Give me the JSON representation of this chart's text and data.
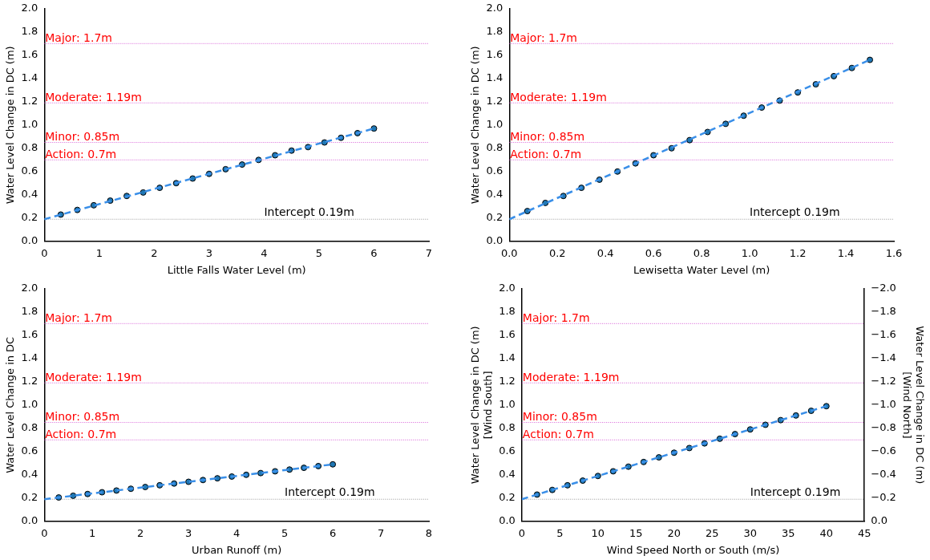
{
  "chart_data": [
    {
      "type": "scatter",
      "xlabel": "Little Falls Water Level (m)",
      "ylabel": "Water Level Change in DC (m)",
      "xlim": [
        0,
        7
      ],
      "xticks": [
        0,
        1,
        2,
        3,
        4,
        5,
        6,
        7
      ],
      "ylim": [
        0,
        2
      ],
      "yticks": [
        {
          "value": 0,
          "label": "0.0"
        },
        {
          "value": 0.2,
          "label": "0.2"
        },
        {
          "value": 0.4,
          "label": "0.4"
        },
        {
          "value": 0.6,
          "label": "0.6"
        },
        {
          "value": 0.8,
          "label": "0.8"
        },
        {
          "value": 1,
          "label": "1.0"
        },
        {
          "value": 1.2,
          "label": "1.2"
        },
        {
          "value": 1.4,
          "label": "1.4"
        },
        {
          "value": 1.6,
          "label": "1.6"
        },
        {
          "value": 1.8,
          "label": "1.8"
        },
        {
          "value": 2,
          "label": "2.0"
        }
      ],
      "legend": false,
      "marker": "circle",
      "series": [
        {
          "type": "line",
          "color": "#3a8fe8",
          "line_style": "dashed",
          "marker": "none",
          "x": [
            0,
            6
          ],
          "values": [
            0.19,
            0.97
          ]
        },
        {
          "type": "scatter",
          "color": "#1f77b4",
          "x": [
            0.3,
            0.6,
            0.9,
            1.2,
            1.5,
            1.8,
            2.1,
            2.4,
            2.7,
            3.0,
            3.3,
            3.6,
            3.9,
            4.2,
            4.5,
            4.8,
            5.1,
            5.4,
            5.7,
            6.0
          ],
          "values": [
            0.23,
            0.27,
            0.31,
            0.35,
            0.39,
            0.42,
            0.46,
            0.5,
            0.54,
            0.58,
            0.62,
            0.66,
            0.7,
            0.74,
            0.78,
            0.81,
            0.85,
            0.89,
            0.93,
            0.97
          ]
        }
      ],
      "ref_lines": [
        {
          "axis": "y",
          "value": 1.7,
          "label": "Major: 1.7m",
          "color": "#cc33cc"
        },
        {
          "axis": "y",
          "value": 1.19,
          "label": "Moderate: 1.19m",
          "color": "#cc33cc"
        },
        {
          "axis": "y",
          "value": 0.85,
          "label": "Minor: 0.85m",
          "color": "#cc33cc"
        },
        {
          "axis": "y",
          "value": 0.7,
          "label": "Action: 0.7m",
          "color": "#cc33cc"
        },
        {
          "axis": "y",
          "value": 0.19,
          "color": "#808080"
        }
      ],
      "annotations": [
        {
          "text": "Intercept 0.19m",
          "x": 4,
          "y": 0.19
        }
      ]
    },
    {
      "type": "scatter",
      "xlabel": "Lewisetta Water Level (m)",
      "ylabel": "Water Level Change in DC (m)",
      "xlim": [
        0,
        1.6
      ],
      "xticks": [
        {
          "value": 0,
          "label": "0.0"
        },
        {
          "value": 0.2,
          "label": "0.2"
        },
        {
          "value": 0.4,
          "label": "0.4"
        },
        {
          "value": 0.6,
          "label": "0.6"
        },
        {
          "value": 0.8,
          "label": "0.8"
        },
        {
          "value": 1,
          "label": "1.0"
        },
        {
          "value": 1.2,
          "label": "1.2"
        },
        {
          "value": 1.4,
          "label": "1.4"
        },
        {
          "value": 1.6,
          "label": "1.6"
        }
      ],
      "ylim": [
        0,
        2
      ],
      "yticks": [
        {
          "value": 0,
          "label": "0.0"
        },
        {
          "value": 0.2,
          "label": "0.2"
        },
        {
          "value": 0.4,
          "label": "0.4"
        },
        {
          "value": 0.6,
          "label": "0.6"
        },
        {
          "value": 0.8,
          "label": "0.8"
        },
        {
          "value": 1,
          "label": "1.0"
        },
        {
          "value": 1.2,
          "label": "1.2"
        },
        {
          "value": 1.4,
          "label": "1.4"
        },
        {
          "value": 1.6,
          "label": "1.6"
        },
        {
          "value": 1.8,
          "label": "1.8"
        },
        {
          "value": 2,
          "label": "2.0"
        }
      ],
      "legend": false,
      "marker": "circle",
      "series": [
        {
          "type": "line",
          "color": "#3a8fe8",
          "line_style": "dashed",
          "marker": "none",
          "x": [
            0,
            1.5
          ],
          "values": [
            0.19,
            1.56
          ]
        },
        {
          "type": "scatter",
          "color": "#1f77b4",
          "x": [
            0.075,
            0.15,
            0.225,
            0.3,
            0.375,
            0.45,
            0.525,
            0.6,
            0.675,
            0.75,
            0.825,
            0.9,
            0.975,
            1.05,
            1.125,
            1.2,
            1.275,
            1.35,
            1.425,
            1.5
          ],
          "values": [
            0.26,
            0.33,
            0.39,
            0.46,
            0.53,
            0.6,
            0.67,
            0.74,
            0.8,
            0.87,
            0.94,
            1.01,
            1.08,
            1.15,
            1.21,
            1.28,
            1.35,
            1.42,
            1.49,
            1.56
          ]
        }
      ],
      "ref_lines": [
        {
          "axis": "y",
          "value": 1.7,
          "label": "Major: 1.7m",
          "color": "#cc33cc"
        },
        {
          "axis": "y",
          "value": 1.19,
          "label": "Moderate: 1.19m",
          "color": "#cc33cc"
        },
        {
          "axis": "y",
          "value": 0.85,
          "label": "Minor: 0.85m",
          "color": "#cc33cc"
        },
        {
          "axis": "y",
          "value": 0.7,
          "label": "Action: 0.7m",
          "color": "#cc33cc"
        },
        {
          "axis": "y",
          "value": 0.19,
          "color": "#808080"
        }
      ],
      "annotations": [
        {
          "text": "Intercept 0.19m",
          "x": 1,
          "y": 0.19
        }
      ]
    },
    {
      "type": "scatter",
      "xlabel": "Urban Runoff (m)",
      "ylabel": "Water Level Change in DC",
      "xlim": [
        0,
        8
      ],
      "xticks": [
        0,
        1,
        2,
        3,
        4,
        5,
        6,
        7,
        8
      ],
      "ylim": [
        0,
        2
      ],
      "yticks": [
        {
          "value": 0,
          "label": "0.0"
        },
        {
          "value": 0.2,
          "label": "0.2"
        },
        {
          "value": 0.4,
          "label": "0.4"
        },
        {
          "value": 0.6,
          "label": "0.6"
        },
        {
          "value": 0.8,
          "label": "0.8"
        },
        {
          "value": 1,
          "label": "1.0"
        },
        {
          "value": 1.2,
          "label": "1.2"
        },
        {
          "value": 1.4,
          "label": "1.4"
        },
        {
          "value": 1.6,
          "label": "1.6"
        },
        {
          "value": 1.8,
          "label": "1.8"
        },
        {
          "value": 2,
          "label": "2.0"
        }
      ],
      "legend": false,
      "marker": "circle",
      "series": [
        {
          "type": "line",
          "color": "#3a8fe8",
          "line_style": "dashed",
          "marker": "none",
          "x": [
            0,
            6
          ],
          "values": [
            0.19,
            0.49
          ]
        },
        {
          "type": "scatter",
          "color": "#1f77b4",
          "x": [
            0.3,
            0.6,
            0.9,
            1.2,
            1.5,
            1.8,
            2.1,
            2.4,
            2.7,
            3.0,
            3.3,
            3.6,
            3.9,
            4.2,
            4.5,
            4.8,
            5.1,
            5.4,
            5.7,
            6.0
          ],
          "values": [
            0.205,
            0.22,
            0.235,
            0.25,
            0.265,
            0.28,
            0.295,
            0.31,
            0.325,
            0.34,
            0.355,
            0.37,
            0.385,
            0.4,
            0.415,
            0.43,
            0.445,
            0.46,
            0.475,
            0.49
          ]
        }
      ],
      "ref_lines": [
        {
          "axis": "y",
          "value": 1.7,
          "label": "Major: 1.7m",
          "color": "#cc33cc"
        },
        {
          "axis": "y",
          "value": 1.19,
          "label": "Moderate: 1.19m",
          "color": "#cc33cc"
        },
        {
          "axis": "y",
          "value": 0.85,
          "label": "Minor: 0.85m",
          "color": "#cc33cc"
        },
        {
          "axis": "y",
          "value": 0.7,
          "label": "Action: 0.7m",
          "color": "#cc33cc"
        },
        {
          "axis": "y",
          "value": 0.19,
          "color": "#808080"
        }
      ],
      "annotations": [
        {
          "text": "Intercept 0.19m",
          "x": 5,
          "y": 0.19
        }
      ]
    },
    {
      "type": "scatter",
      "xlabel": "Wind Speed North or South (m/s)",
      "ylabel": "Water Level Change in DC (m)\n[Wind South]",
      "y2label": "Water Level Change in DC (m)\n[Wind North]",
      "xlim": [
        0,
        45
      ],
      "xticks": [
        0,
        5,
        10,
        15,
        20,
        25,
        30,
        35,
        40,
        45
      ],
      "ylim": [
        0,
        2
      ],
      "yticks": [
        {
          "value": 0,
          "label": "0.0"
        },
        {
          "value": 0.2,
          "label": "0.2"
        },
        {
          "value": 0.4,
          "label": "0.4"
        },
        {
          "value": 0.6,
          "label": "0.6"
        },
        {
          "value": 0.8,
          "label": "0.8"
        },
        {
          "value": 1,
          "label": "1.0"
        },
        {
          "value": 1.2,
          "label": "1.2"
        },
        {
          "value": 1.4,
          "label": "1.4"
        },
        {
          "value": 1.6,
          "label": "1.6"
        },
        {
          "value": 1.8,
          "label": "1.8"
        },
        {
          "value": 2,
          "label": "2.0"
        }
      ],
      "y2lim": [
        0,
        -2
      ],
      "y2ticks": [
        {
          "value": 0,
          "label": "0.0"
        },
        {
          "value": -0.2,
          "label": "−0.2"
        },
        {
          "value": -0.4,
          "label": "−0.4"
        },
        {
          "value": -0.6,
          "label": "−0.6"
        },
        {
          "value": -0.8,
          "label": "−0.8"
        },
        {
          "value": -1,
          "label": "−1.0"
        },
        {
          "value": -1.2,
          "label": "−1.2"
        },
        {
          "value": -1.4,
          "label": "−1.4"
        },
        {
          "value": -1.6,
          "label": "−1.6"
        },
        {
          "value": -1.8,
          "label": "−1.8"
        },
        {
          "value": -2,
          "label": "−2.0"
        }
      ],
      "legend": false,
      "marker": "circle",
      "series": [
        {
          "type": "line",
          "color": "#3a8fe8",
          "line_style": "dashed",
          "marker": "none",
          "x": [
            0,
            40
          ],
          "values": [
            0.19,
            0.99
          ]
        },
        {
          "type": "scatter",
          "color": "#1f77b4",
          "x": [
            2,
            4,
            6,
            8,
            10,
            12,
            14,
            16,
            18,
            20,
            22,
            24,
            26,
            28,
            30,
            32,
            34,
            36,
            38,
            40
          ],
          "values": [
            0.23,
            0.27,
            0.31,
            0.35,
            0.39,
            0.43,
            0.47,
            0.51,
            0.55,
            0.59,
            0.63,
            0.67,
            0.71,
            0.75,
            0.79,
            0.83,
            0.87,
            0.91,
            0.95,
            0.99
          ]
        }
      ],
      "ref_lines": [
        {
          "axis": "y",
          "value": 1.7,
          "label": "Major: 1.7m",
          "color": "#cc33cc"
        },
        {
          "axis": "y",
          "value": 1.19,
          "label": "Moderate: 1.19m",
          "color": "#cc33cc"
        },
        {
          "axis": "y",
          "value": 0.85,
          "label": "Minor: 0.85m",
          "color": "#cc33cc"
        },
        {
          "axis": "y",
          "value": 0.7,
          "label": "Action: 0.7m",
          "color": "#cc33cc"
        },
        {
          "axis": "y",
          "value": 0.19,
          "color": "#808080"
        }
      ],
      "annotations": [
        {
          "text": "Intercept 0.19m",
          "x": 30,
          "y": 0.19
        }
      ]
    }
  ]
}
